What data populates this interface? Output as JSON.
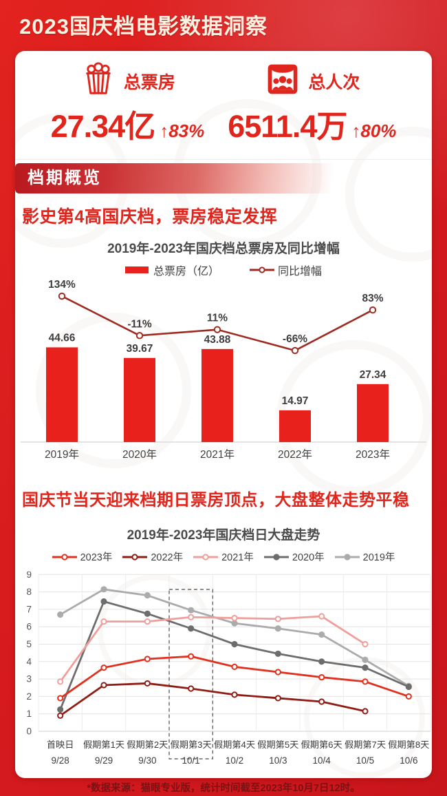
{
  "header": {
    "title": "2023国庆档电影数据洞察"
  },
  "stats": [
    {
      "icon": "popcorn-icon",
      "label": "总票房",
      "value": "27.34亿",
      "growth": "↑83%"
    },
    {
      "icon": "theater-audience-icon",
      "label": "总人次",
      "value": "6511.4万",
      "growth": "↑80%"
    }
  ],
  "sections": [
    {
      "badge": "档期概览",
      "heading": "影史第4高国庆档，票房稳定发挥"
    },
    {
      "heading": "国庆节当天迎来档期日票房顶点，大盘整体走势平稳"
    }
  ],
  "footer": {
    "note": "*数据来源：猫眼专业版，统计时间截至2023年10月7日12时。"
  },
  "colors": {
    "accent_red": "#e0251c",
    "bar_red": "#e8211c",
    "growth_line": "#9e2b22",
    "page_red": "#d51a1e",
    "footer_text": "#7c1113"
  },
  "chart_data": [
    {
      "type": "bar",
      "title": "2019年-2023年国庆档总票房及同比增幅",
      "categories": [
        "2019年",
        "2020年",
        "2021年",
        "2022年",
        "2023年"
      ],
      "series": [
        {
          "name": "总票房（亿）",
          "type": "bar",
          "values": [
            44.66,
            39.67,
            43.88,
            14.97,
            27.34
          ],
          "color": "#e8211c",
          "value_labels": [
            "44.66",
            "39.67",
            "43.88",
            "14.97",
            "27.34"
          ]
        },
        {
          "name": "同比增幅",
          "type": "line",
          "values": [
            134,
            -11,
            11,
            -66,
            83
          ],
          "value_labels": [
            "134%",
            "-11%",
            "11%",
            "-66%",
            "83%"
          ],
          "color": "#9e2b22"
        }
      ],
      "legend_position": "top",
      "grid": false
    },
    {
      "type": "line",
      "title": "2019年-2023年国庆档日大盘走势",
      "x_labels_line1": [
        "首映日",
        "假期第1天",
        "假期第2天",
        "假期第3天",
        "假期第4天",
        "假期第5天",
        "假期第6天",
        "假期第7天",
        "假期第8天"
      ],
      "x_labels_line2": [
        "9/28",
        "9/29",
        "9/30",
        "10/1",
        "10/2",
        "10/3",
        "10/4",
        "10/5",
        "10/6"
      ],
      "ylim": [
        0,
        9
      ],
      "yticks": [
        0,
        1,
        2,
        3,
        4,
        5,
        6,
        7,
        8,
        9
      ],
      "highlight_column_index": 3,
      "series": [
        {
          "name": "2023年",
          "values": [
            1.9,
            3.65,
            4.15,
            4.3,
            3.7,
            3.4,
            3.1,
            2.85,
            2.0
          ],
          "color": "#e0301e",
          "marker": "open"
        },
        {
          "name": "2022年",
          "values": [
            0.9,
            2.65,
            2.75,
            2.45,
            2.1,
            1.9,
            1.7,
            1.15,
            null
          ],
          "color": "#8f1d15",
          "marker": "open"
        },
        {
          "name": "2021年",
          "values": [
            2.85,
            6.3,
            6.3,
            6.55,
            6.5,
            6.45,
            6.6,
            5.0,
            null
          ],
          "color": "#ef9f9b",
          "marker": "open"
        },
        {
          "name": "2020年",
          "values": [
            1.25,
            7.45,
            6.75,
            5.9,
            5.0,
            4.45,
            4.0,
            3.65,
            2.55
          ],
          "color": "#6d6d6d",
          "marker": "solid"
        },
        {
          "name": "2019年",
          "values": [
            6.7,
            8.15,
            7.8,
            6.95,
            6.2,
            5.9,
            5.55,
            4.1,
            2.6
          ],
          "color": "#ababab",
          "marker": "solid"
        }
      ],
      "legend_position": "top",
      "grid": true
    }
  ]
}
